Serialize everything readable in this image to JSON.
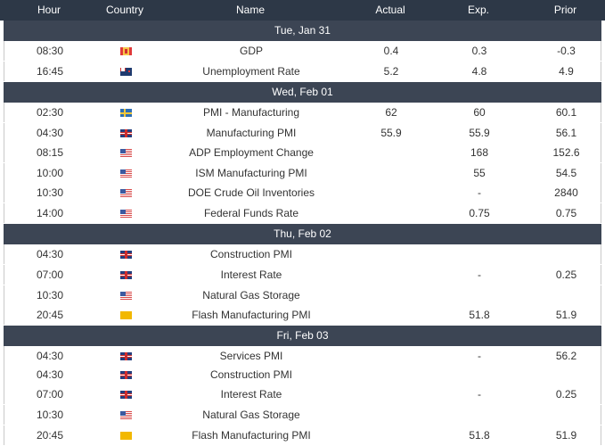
{
  "header": {
    "hour": "Hour",
    "country": "Country",
    "name": "Name",
    "actual": "Actual",
    "exp": "Exp.",
    "prior": "Prior"
  },
  "days": [
    {
      "label": "Tue, Jan 31",
      "rows": [
        {
          "hour": "08:30",
          "flag": "flag-ca",
          "name": "GDP",
          "actual": "0.4",
          "exp": "0.3",
          "prior": "-0.3"
        },
        {
          "hour": "16:45",
          "flag": "flag-nz",
          "name": "Unemployment Rate",
          "actual": "5.2",
          "exp": "4.8",
          "prior": "4.9"
        }
      ]
    },
    {
      "label": "Wed, Feb 01",
      "rows": [
        {
          "hour": "02:30",
          "flag": "flag-se",
          "name": "PMI - Manufacturing",
          "actual": "62",
          "exp": "60",
          "prior": "60.1"
        },
        {
          "hour": "04:30",
          "flag": "flag-gb",
          "name": "Manufacturing PMI",
          "actual": "55.9",
          "exp": "55.9",
          "prior": "56.1"
        },
        {
          "hour": "08:15",
          "flag": "flag-us",
          "name": "ADP Employment Change",
          "actual": "",
          "exp": "168",
          "prior": "152.6"
        },
        {
          "hour": "10:00",
          "flag": "flag-us",
          "name": "ISM Manufacturing PMI",
          "actual": "",
          "exp": "55",
          "prior": "54.5"
        },
        {
          "hour": "10:30",
          "flag": "flag-us",
          "name": "DOE Crude Oil Inventories",
          "actual": "",
          "exp": "-",
          "prior": "2840"
        },
        {
          "hour": "14:00",
          "flag": "flag-us",
          "name": "Federal Funds Rate",
          "actual": "",
          "exp": "0.75",
          "prior": "0.75"
        }
      ]
    },
    {
      "label": "Thu, Feb 02",
      "rows": [
        {
          "hour": "04:30",
          "flag": "flag-gb",
          "name": "Construction PMI",
          "actual": "",
          "exp": "",
          "prior": ""
        },
        {
          "hour": "07:00",
          "flag": "flag-gb",
          "name": "Interest Rate",
          "actual": "",
          "exp": "-",
          "prior": "0.25"
        },
        {
          "hour": "10:30",
          "flag": "flag-us",
          "name": "Natural Gas Storage",
          "actual": "",
          "exp": "",
          "prior": ""
        },
        {
          "hour": "20:45",
          "flag": "flag-eu",
          "name": "Flash Manufacturing PMI",
          "actual": "",
          "exp": "51.8",
          "prior": "51.9"
        }
      ]
    },
    {
      "label": "Fri, Feb 03",
      "rows": [
        {
          "hour": "04:30",
          "flag": "flag-gb",
          "name": "Services PMI",
          "actual": "",
          "exp": "-",
          "prior": "56.2"
        },
        {
          "hour": "04:30",
          "flag": "flag-gb",
          "name": "Construction PMI",
          "actual": "",
          "exp": "",
          "prior": ""
        },
        {
          "hour": "07:00",
          "flag": "flag-gb",
          "name": "Interest Rate",
          "actual": "",
          "exp": "-",
          "prior": "0.25"
        },
        {
          "hour": "10:30",
          "flag": "flag-us",
          "name": "Natural Gas Storage",
          "actual": "",
          "exp": "",
          "prior": ""
        },
        {
          "hour": "20:45",
          "flag": "flag-eu",
          "name": "Flash Manufacturing PMI",
          "actual": "",
          "exp": "51.8",
          "prior": "51.9"
        }
      ]
    }
  ]
}
